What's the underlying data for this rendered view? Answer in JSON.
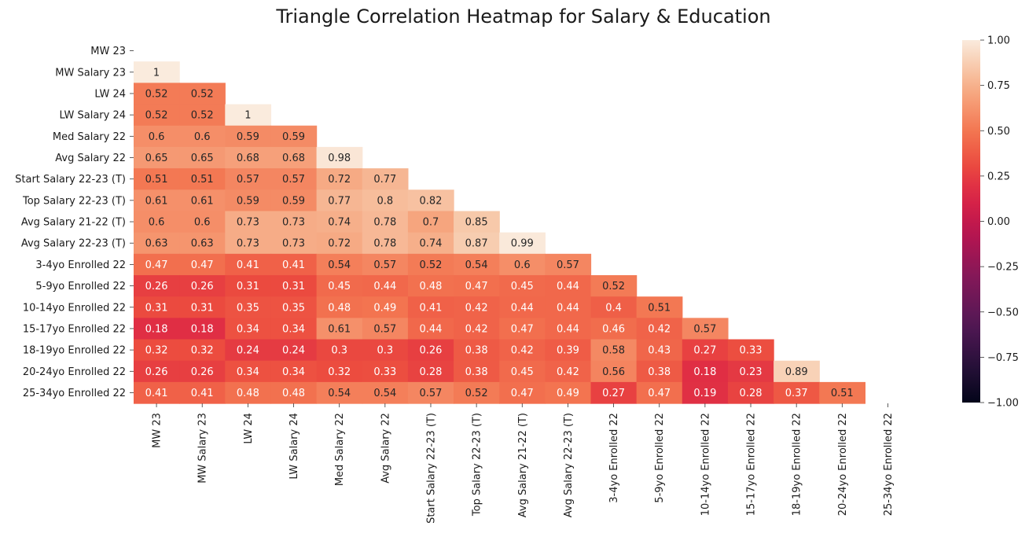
{
  "chart_data": {
    "type": "heatmap",
    "title": "Triangle Correlation Heatmap for Salary & Education",
    "labels": [
      "MW 23",
      "MW Salary 23",
      "LW 24",
      "LW Salary 24",
      "Med Salary 22",
      "Avg Salary 22",
      "Start Salary 22-23 (T)",
      "Top Salary 22-23 (T)",
      "Avg Salary 21-22 (T)",
      "Avg Salary 22-23 (T)",
      "3-4yo Enrolled 22",
      "5-9yo Enrolled 22",
      "10-14yo Enrolled 22",
      "15-17yo Enrolled 22",
      "18-19yo Enrolled 22",
      "20-24yo Enrolled 22",
      "25-34yo Enrolled 22"
    ],
    "matrix_lower": [
      [],
      [
        1
      ],
      [
        0.52,
        0.52
      ],
      [
        0.52,
        0.52,
        1
      ],
      [
        0.6,
        0.6,
        0.59,
        0.59
      ],
      [
        0.65,
        0.65,
        0.68,
        0.68,
        0.98
      ],
      [
        0.51,
        0.51,
        0.57,
        0.57,
        0.72,
        0.77
      ],
      [
        0.61,
        0.61,
        0.59,
        0.59,
        0.77,
        0.8,
        0.82
      ],
      [
        0.6,
        0.6,
        0.73,
        0.73,
        0.74,
        0.78,
        0.7,
        0.85
      ],
      [
        0.63,
        0.63,
        0.73,
        0.73,
        0.72,
        0.78,
        0.74,
        0.87,
        0.99
      ],
      [
        0.47,
        0.47,
        0.41,
        0.41,
        0.54,
        0.57,
        0.52,
        0.54,
        0.6,
        0.57
      ],
      [
        0.26,
        0.26,
        0.31,
        0.31,
        0.45,
        0.44,
        0.48,
        0.47,
        0.45,
        0.44,
        0.52
      ],
      [
        0.31,
        0.31,
        0.35,
        0.35,
        0.48,
        0.49,
        0.41,
        0.42,
        0.44,
        0.44,
        0.4,
        0.51
      ],
      [
        0.18,
        0.18,
        0.34,
        0.34,
        0.61,
        0.57,
        0.44,
        0.42,
        0.47,
        0.44,
        0.46,
        0.42,
        0.57
      ],
      [
        0.32,
        0.32,
        0.24,
        0.24,
        0.3,
        0.3,
        0.26,
        0.38,
        0.42,
        0.39,
        0.58,
        0.43,
        0.27,
        0.33
      ],
      [
        0.26,
        0.26,
        0.34,
        0.34,
        0.32,
        0.33,
        0.28,
        0.38,
        0.45,
        0.42,
        0.56,
        0.38,
        0.18,
        0.23,
        0.89
      ],
      [
        0.41,
        0.41,
        0.48,
        0.48,
        0.54,
        0.54,
        0.57,
        0.52,
        0.47,
        0.49,
        0.27,
        0.47,
        0.19,
        0.28,
        0.37,
        0.51
      ]
    ],
    "vmin": -1,
    "vmax": 1,
    "colormap": "rocket",
    "colorbar_ticks": [
      "1.00",
      "0.75",
      "0.50",
      "0.25",
      "0.00",
      "−0.25",
      "−0.50",
      "−0.75",
      "−1.00"
    ],
    "colorbar_tick_values": [
      1,
      0.75,
      0.5,
      0.25,
      0,
      -0.25,
      -0.5,
      -0.75,
      -1
    ],
    "annotations": true,
    "mask": "upper-triangle-including-diagonal",
    "grid": false
  }
}
